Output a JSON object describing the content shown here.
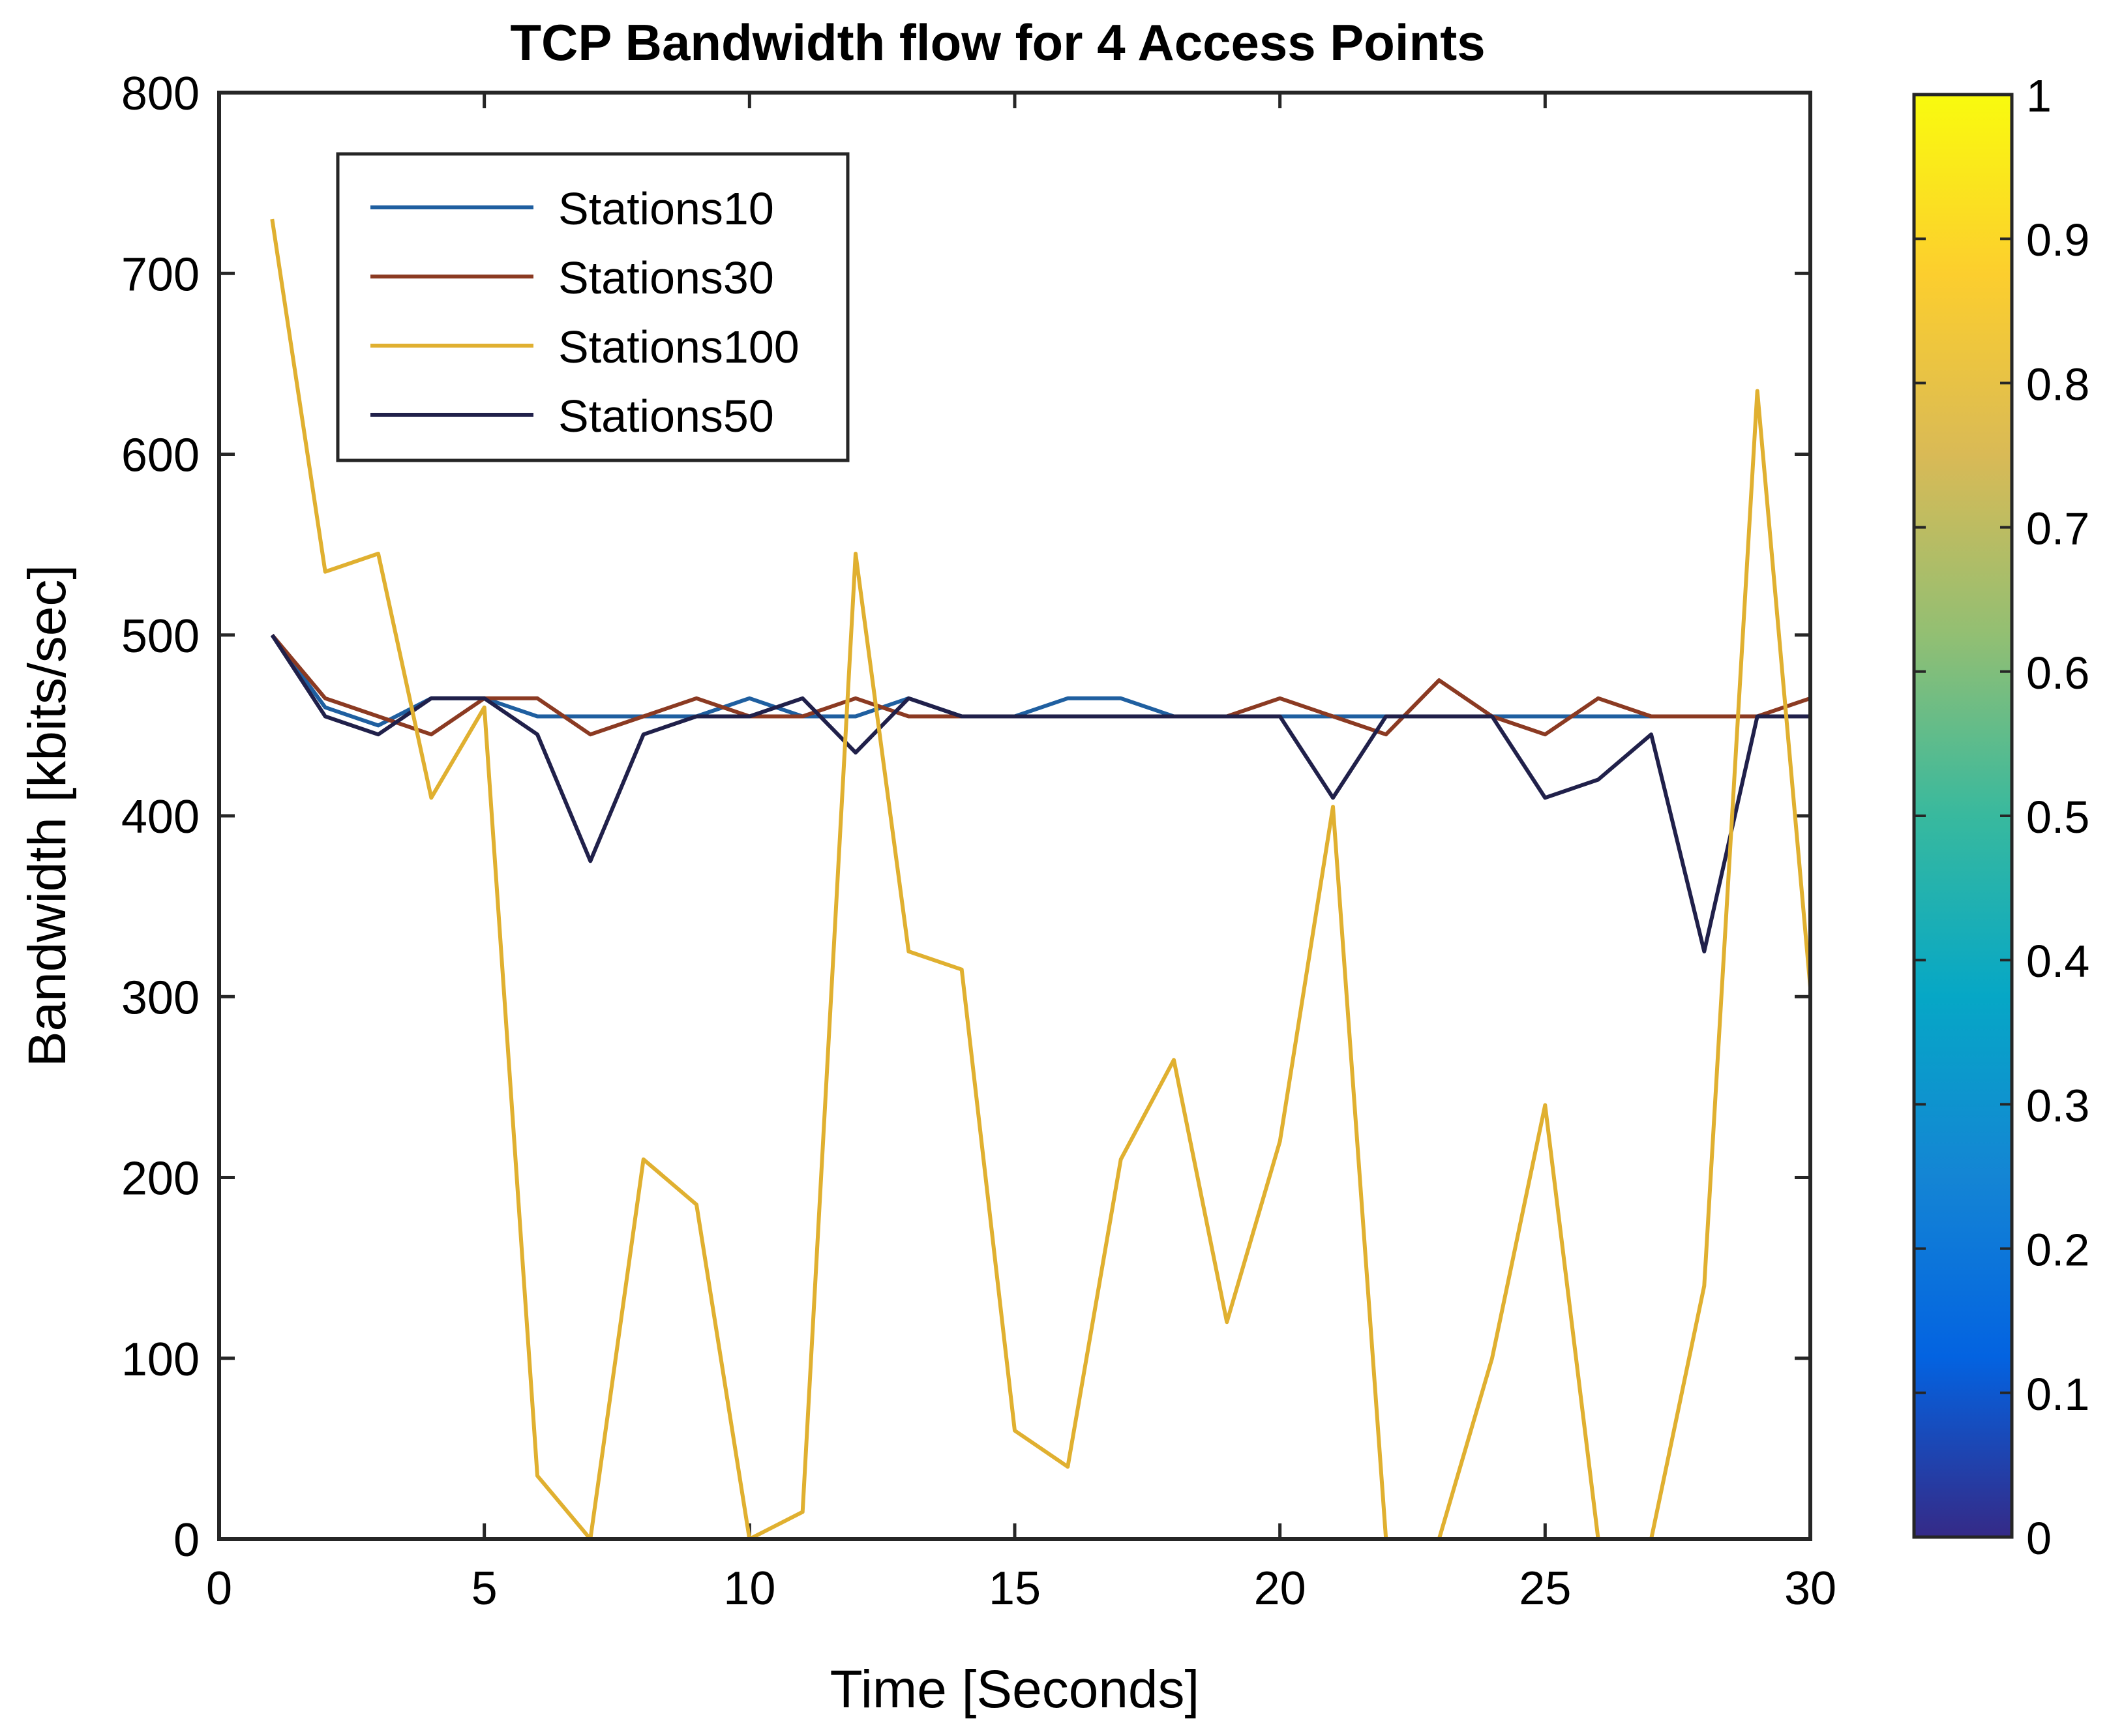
{
  "chart_data": {
    "type": "line",
    "title": "TCP Bandwidth flow for 4 Access Points",
    "xlabel": "Time [Seconds]",
    "ylabel": "Bandwidth [kbits/sec]",
    "xlim": [
      0,
      30
    ],
    "ylim": [
      0,
      800
    ],
    "xticks": [
      0,
      5,
      10,
      15,
      20,
      25,
      30
    ],
    "yticks": [
      0,
      100,
      200,
      300,
      400,
      500,
      600,
      700,
      800
    ],
    "legend_position": "top-left",
    "x": [
      1,
      2,
      3,
      4,
      5,
      6,
      7,
      8,
      9,
      10,
      11,
      12,
      13,
      14,
      15,
      16,
      17,
      18,
      19,
      20,
      21,
      22,
      23,
      24,
      25,
      26,
      27,
      28,
      29,
      30
    ],
    "series": [
      {
        "name": "Stations10",
        "color": "#1f5fa0",
        "values": [
          500,
          460,
          450,
          465,
          465,
          455,
          455,
          455,
          455,
          465,
          455,
          455,
          465,
          455,
          455,
          465,
          465,
          455,
          455,
          455,
          455,
          455,
          455,
          455,
          455,
          455,
          455,
          455,
          455,
          455
        ]
      },
      {
        "name": "Stations30",
        "color": "#8b3a22",
        "values": [
          500,
          465,
          455,
          445,
          465,
          465,
          445,
          455,
          465,
          455,
          455,
          465,
          455,
          455,
          455,
          455,
          455,
          455,
          455,
          465,
          455,
          445,
          475,
          455,
          445,
          465,
          455,
          455,
          455,
          465
        ]
      },
      {
        "name": "Stations100",
        "color": "#e0b030",
        "values": [
          730,
          535,
          545,
          410,
          460,
          35,
          0,
          210,
          185,
          0,
          15,
          545,
          325,
          315,
          60,
          40,
          210,
          265,
          120,
          220,
          405,
          0,
          0,
          100,
          240,
          0,
          0,
          140,
          635,
          305
        ]
      },
      {
        "name": "Stations50",
        "color": "#20204a",
        "values": [
          500,
          455,
          445,
          465,
          465,
          445,
          375,
          445,
          455,
          455,
          465,
          435,
          465,
          455,
          455,
          455,
          455,
          455,
          455,
          455,
          410,
          455,
          455,
          455,
          410,
          420,
          445,
          325,
          455,
          455
        ]
      }
    ],
    "colorbar": {
      "min": 0,
      "max": 1,
      "ticks": [
        "0",
        "0.1",
        "0.2",
        "0.3",
        "0.4",
        "0.5",
        "0.6",
        "0.7",
        "0.8",
        "0.9",
        "1"
      ],
      "colormap": [
        "#352a87",
        "#0363e1",
        "#1485d4",
        "#06a7c6",
        "#38b99e",
        "#92bf73",
        "#d9ba56",
        "#fcce2e",
        "#f9fb0e"
      ]
    }
  }
}
